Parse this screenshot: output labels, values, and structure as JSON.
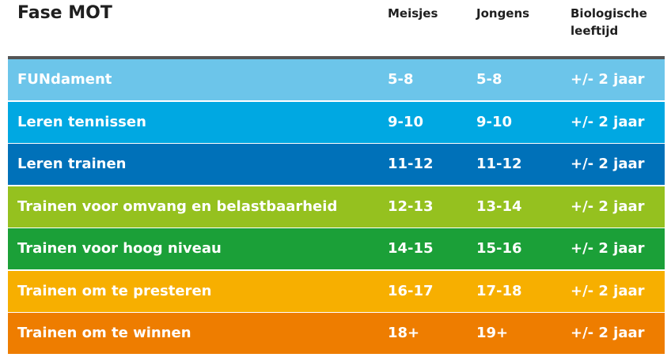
{
  "header": {
    "title": "Fase MOT",
    "col_girls": "Meisjes",
    "col_boys": "Jongens",
    "col_bio_line1": "Biologische",
    "col_bio_line2": "leeftijd"
  },
  "rows": [
    {
      "phase": "FUNdament",
      "girls": "5-8",
      "boys": "5-8",
      "bio": "+/- 2 jaar",
      "color": "#6cc5ea"
    },
    {
      "phase": "Leren tennissen",
      "girls": "9-10",
      "boys": "9-10",
      "bio": "+/- 2 jaar",
      "color": "#00a8e2"
    },
    {
      "phase": "Leren trainen",
      "girls": "11-12",
      "boys": "11-12",
      "bio": "+/- 2 jaar",
      "color": "#0071b9"
    },
    {
      "phase": "Trainen voor omvang en belastbaarheid",
      "girls": "12-13",
      "boys": "13-14",
      "bio": "+/- 2 jaar",
      "color": "#95c11f"
    },
    {
      "phase": "Trainen voor hoog niveau",
      "girls": "14-15",
      "boys": "15-16",
      "bio": "+/- 2 jaar",
      "color": "#1ba038"
    },
    {
      "phase": "Trainen om te presteren",
      "girls": "16-17",
      "boys": "17-18",
      "bio": "+/- 2 jaar",
      "color": "#f7af00"
    },
    {
      "phase": "Trainen om te winnen",
      "girls": "18+",
      "boys": "19+",
      "bio": "+/- 2 jaar",
      "color": "#ee7d00"
    }
  ]
}
